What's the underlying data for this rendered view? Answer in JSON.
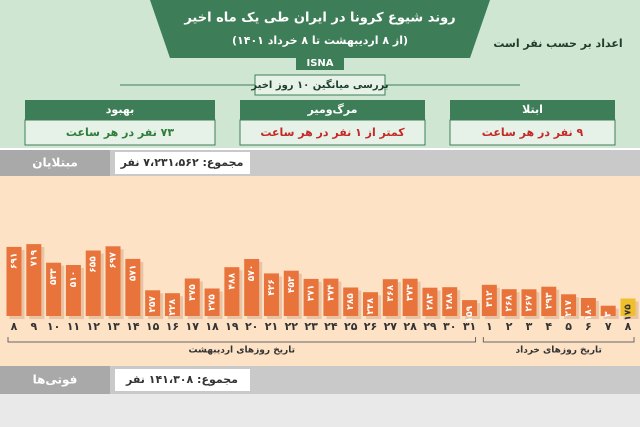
{
  "header": {
    "title": "روند شیوع کرونا در ایران طی یک ماه اخیر",
    "subtitle": "(از ۸ اردیبهشت تا ۸ خرداد ۱۴۰۱)",
    "agency": "ISNA",
    "unit_note": "اعداد بر حسب نفر است"
  },
  "summary": {
    "caption": "بررسی میانگین ۱۰ روز اخیر",
    "boxes": [
      {
        "title": "بهبود",
        "text": "۷۳ نفر در هر ساعت"
      },
      {
        "title": "مرگ‌ومیر",
        "text": "کمتر از ۱ نفر در هر ساعت"
      },
      {
        "title": "ابتلا",
        "text": "۹ نفر در هر ساعت"
      }
    ]
  },
  "cases": {
    "label": "مبتلایان",
    "total": "مجموع: ۷،۲۳۱،۵۶۲ نفر"
  },
  "deaths": {
    "label": "فوتی‌ها",
    "total": "مجموع: ۱۴۱،۳۰۸ نفر"
  },
  "chart_data": {
    "type": "bar",
    "categories": [
      "۸",
      "۹",
      "۱۰",
      "۱۱",
      "۱۲",
      "۱۳",
      "۱۴",
      "۱۵",
      "۱۶",
      "۱۷",
      "۱۸",
      "۱۹",
      "۲۰",
      "۲۱",
      "۲۲",
      "۲۳",
      "۲۴",
      "۲۵",
      "۲۶",
      "۲۷",
      "۲۸",
      "۲۹",
      "۳۰",
      "۳۱",
      "۱",
      "۲",
      "۳",
      "۴",
      "۵",
      "۶",
      "۷",
      "۸"
    ],
    "values": [
      691,
      719,
      533,
      510,
      655,
      697,
      571,
      257,
      228,
      375,
      275,
      488,
      570,
      426,
      453,
      371,
      374,
      285,
      238,
      368,
      373,
      283,
      288,
      159,
      312,
      268,
      267,
      293,
      217,
      180,
      103,
      175
    ],
    "value_labels": [
      "۶۹۱",
      "۷۱۹",
      "۵۳۳",
      "۵۱۰",
      "۶۵۵",
      "۶۹۷",
      "۵۷۱",
      "۲۵۷",
      "۲۲۸",
      "۳۷۵",
      "۲۷۵",
      "۴۸۸",
      "۵۷۰",
      "۴۲۶",
      "۴۵۳",
      "۳۷۱",
      "۳۷۴",
      "۲۸۵",
      "۲۳۸",
      "۳۶۸",
      "۳۷۳",
      "۲۸۳",
      "۲۸۸",
      "۱۵۹",
      "۳۱۲",
      "۲۶۸",
      "۲۶۷",
      "۲۹۳",
      "۲۱۷",
      "۱۸۰",
      "۱۰۳",
      "۱۷۵"
    ],
    "colors": [
      "#e8743b",
      "#e8743b",
      "#e8743b",
      "#e8743b",
      "#e8743b",
      "#e8743b",
      "#e8743b",
      "#e8743b",
      "#e8743b",
      "#e8743b",
      "#e8743b",
      "#e8743b",
      "#e8743b",
      "#e8743b",
      "#e8743b",
      "#e8743b",
      "#e8743b",
      "#e8743b",
      "#e8743b",
      "#e8743b",
      "#e8743b",
      "#e8743b",
      "#e8743b",
      "#e8743b",
      "#e8743b",
      "#e8743b",
      "#e8743b",
      "#e8743b",
      "#e8743b",
      "#e8743b",
      "#e8743b",
      "#f0c02c"
    ],
    "month_labels": [
      "تاریخ روزهای اردیبهشت",
      "تاریخ روزهای خرداد"
    ],
    "ylim": [
      0,
      800
    ]
  }
}
